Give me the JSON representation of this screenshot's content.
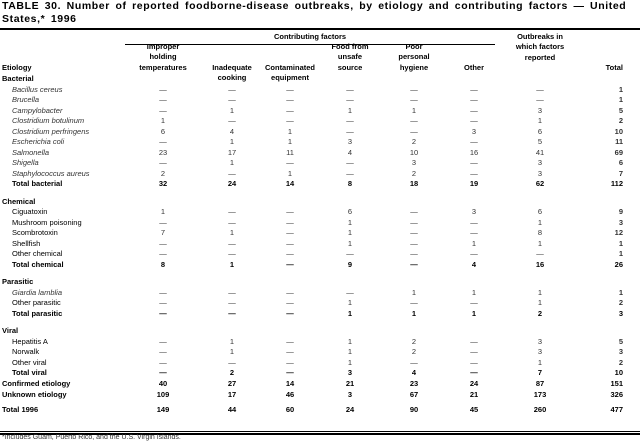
{
  "title": "TABLE 30. Number of reported foodborne-disease outbreaks, by etiology and contributing factors — United States,* 1996",
  "headers": {
    "group": "Contributing factors",
    "etiology": "Etiology",
    "columns": [
      "Improper holding temperatures",
      "Inadequate cooking",
      "Contaminated equipment",
      "Food from unsafe source",
      "Poor personal hygiene",
      "Other",
      "Outbreaks in which factors reported",
      "Total"
    ]
  },
  "rows": [
    {
      "type": "group",
      "label": "Bacterial"
    },
    {
      "type": "item",
      "italic": true,
      "label": "Bacillus cereus",
      "values": [
        "—",
        "—",
        "—",
        "—",
        "—",
        "—",
        "—",
        "1"
      ]
    },
    {
      "type": "item",
      "italic": true,
      "label": "Brucella",
      "values": [
        "—",
        "—",
        "—",
        "—",
        "—",
        "—",
        "—",
        "1"
      ]
    },
    {
      "type": "item",
      "italic": true,
      "label": "Campylobacter",
      "values": [
        "—",
        "1",
        "—",
        "1",
        "1",
        "—",
        "3",
        "5"
      ]
    },
    {
      "type": "item",
      "italic": true,
      "label": "Clostridium botulinum",
      "values": [
        "1",
        "—",
        "—",
        "—",
        "—",
        "—",
        "1",
        "2"
      ]
    },
    {
      "type": "item",
      "italic": true,
      "label": "Clostridium perfringens",
      "values": [
        "6",
        "4",
        "1",
        "—",
        "—",
        "3",
        "6",
        "10"
      ]
    },
    {
      "type": "item",
      "italic": true,
      "label": "Escherichia coli",
      "values": [
        "—",
        "1",
        "1",
        "3",
        "2",
        "—",
        "5",
        "11"
      ]
    },
    {
      "type": "item",
      "italic": true,
      "label": "Salmonella",
      "values": [
        "23",
        "17",
        "11",
        "4",
        "10",
        "16",
        "41",
        "69"
      ]
    },
    {
      "type": "item",
      "italic": true,
      "label": "Shigella",
      "values": [
        "—",
        "1",
        "—",
        "—",
        "3",
        "—",
        "3",
        "6"
      ]
    },
    {
      "type": "item",
      "italic": true,
      "label": "Staphylococcus aureus",
      "values": [
        "2",
        "—",
        "1",
        "—",
        "2",
        "—",
        "3",
        "7"
      ]
    },
    {
      "type": "total",
      "label": "Total bacterial",
      "values": [
        "32",
        "24",
        "14",
        "8",
        "18",
        "19",
        "62",
        "112"
      ]
    },
    {
      "type": "group",
      "label": "Chemical"
    },
    {
      "type": "item",
      "label": "Ciguatoxin",
      "values": [
        "1",
        "—",
        "—",
        "6",
        "—",
        "3",
        "6",
        "9"
      ]
    },
    {
      "type": "item",
      "label": "Mushroom poisoning",
      "values": [
        "—",
        "—",
        "—",
        "1",
        "—",
        "—",
        "1",
        "3"
      ]
    },
    {
      "type": "item",
      "label": "Scombrotoxin",
      "values": [
        "7",
        "1",
        "—",
        "1",
        "—",
        "—",
        "8",
        "12"
      ]
    },
    {
      "type": "item",
      "label": "Shellfish",
      "values": [
        "—",
        "—",
        "—",
        "1",
        "—",
        "1",
        "1",
        "1"
      ]
    },
    {
      "type": "item",
      "label": "Other chemical",
      "values": [
        "—",
        "—",
        "—",
        "—",
        "—",
        "—",
        "—",
        "1"
      ]
    },
    {
      "type": "total",
      "label": "Total chemical",
      "values": [
        "8",
        "1",
        "—",
        "9",
        "—",
        "4",
        "16",
        "26"
      ]
    },
    {
      "type": "group",
      "label": "Parasitic"
    },
    {
      "type": "item",
      "italic": true,
      "label": "Giardia lamblia",
      "values": [
        "—",
        "—",
        "—",
        "—",
        "1",
        "1",
        "1",
        "1"
      ]
    },
    {
      "type": "item",
      "label": "Other parasitic",
      "values": [
        "—",
        "—",
        "—",
        "1",
        "—",
        "—",
        "1",
        "2"
      ]
    },
    {
      "type": "total",
      "label": "Total parasitic",
      "values": [
        "—",
        "—",
        "—",
        "1",
        "1",
        "1",
        "2",
        "3"
      ]
    },
    {
      "type": "group",
      "label": "Viral"
    },
    {
      "type": "item",
      "label": "Hepatitis A",
      "values": [
        "—",
        "1",
        "—",
        "1",
        "2",
        "—",
        "3",
        "5"
      ]
    },
    {
      "type": "item",
      "label": "Norwalk",
      "values": [
        "—",
        "1",
        "—",
        "1",
        "2",
        "—",
        "3",
        "3"
      ]
    },
    {
      "type": "item",
      "label": "Other viral",
      "values": [
        "—",
        "—",
        "—",
        "1",
        "—",
        "—",
        "1",
        "2"
      ]
    },
    {
      "type": "total",
      "label": "Total viral",
      "values": [
        "—",
        "2",
        "—",
        "3",
        "4",
        "—",
        "7",
        "10"
      ]
    },
    {
      "type": "summary",
      "label": "Confirmed etiology",
      "values": [
        "40",
        "27",
        "14",
        "21",
        "23",
        "24",
        "87",
        "151"
      ]
    },
    {
      "type": "summary",
      "label": "Unknown etiology",
      "values": [
        "109",
        "17",
        "46",
        "3",
        "67",
        "21",
        "173",
        "326"
      ]
    },
    {
      "type": "grand",
      "label": "Total 1996",
      "values": [
        "149",
        "44",
        "60",
        "24",
        "90",
        "45",
        "260",
        "477"
      ]
    }
  ],
  "footnote": "*Includes Guam, Puerto Rico, and the U.S. Virgin Islands."
}
